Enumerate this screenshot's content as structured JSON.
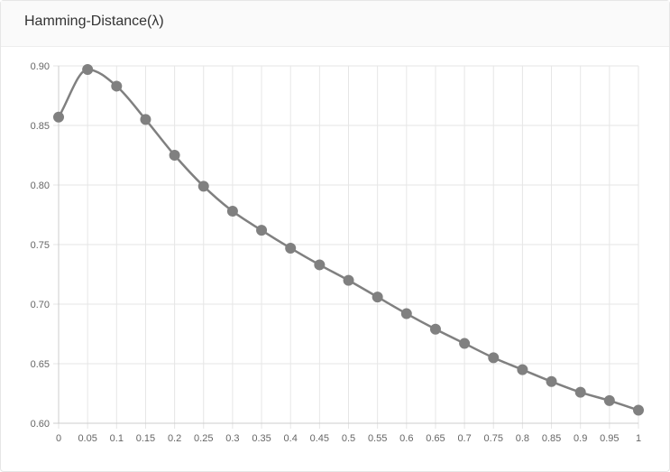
{
  "card": {
    "title": "Hamming-Distance(λ)"
  },
  "chart_data": {
    "type": "line",
    "title": "Hamming-Distance(λ)",
    "xlabel": "",
    "ylabel": "",
    "x_ticks": [
      "0",
      "0.05",
      "0.1",
      "0.15",
      "0.2",
      "0.25",
      "0.3",
      "0.35",
      "0.4",
      "0.45",
      "0.5",
      "0.55",
      "0.6",
      "0.65",
      "0.7",
      "0.75",
      "0.8",
      "0.85",
      "0.9",
      "0.95",
      "1"
    ],
    "y_ticks": [
      "0.90",
      "0.85",
      "0.80",
      "0.75",
      "0.70",
      "0.65",
      "0.60"
    ],
    "ylim": [
      0.6,
      0.9
    ],
    "grid": true,
    "legend": "none",
    "series": [
      {
        "x": [
          0,
          0.05,
          0.1,
          0.15,
          0.2,
          0.25,
          0.3,
          0.35,
          0.4,
          0.45,
          0.5,
          0.55,
          0.6,
          0.65,
          0.7,
          0.75,
          0.8,
          0.85,
          0.9,
          0.95,
          1
        ],
        "values": [
          0.857,
          0.897,
          0.883,
          0.855,
          0.825,
          0.799,
          0.778,
          0.762,
          0.747,
          0.733,
          0.72,
          0.706,
          0.692,
          0.679,
          0.667,
          0.655,
          0.645,
          0.635,
          0.626,
          0.619,
          0.611
        ],
        "color": "#808080"
      }
    ],
    "colors": {
      "line": "#808080",
      "grid": "#e6e6e6",
      "axis": "#cccccc",
      "tick_label": "#666666"
    }
  }
}
